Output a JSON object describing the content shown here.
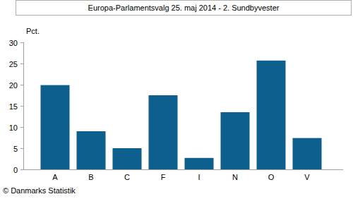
{
  "chart_data": {
    "type": "bar",
    "title": "Europa-Parlamentsvalg 25. maj 2014 - 2. Sundbyvester",
    "y_label": "Pct.",
    "source": "© Danmarks Statistik",
    "categories": [
      "A",
      "B",
      "C",
      "F",
      "I",
      "N",
      "O",
      "V"
    ],
    "values": [
      19.9,
      9.0,
      5.0,
      17.5,
      2.7,
      13.5,
      25.7,
      7.4
    ],
    "color": "#0d5f8e",
    "ylim": [
      0,
      30
    ],
    "yticks": [
      0,
      5,
      10,
      15,
      20,
      25,
      30
    ],
    "grid": false
  }
}
